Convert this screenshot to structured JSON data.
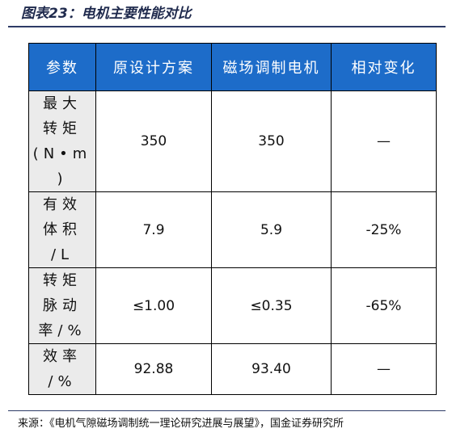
{
  "title": "图表23：电机主要性能对比",
  "table": {
    "headers": [
      "参数",
      "原设计方案",
      "磁场调制电机",
      "相对变化"
    ],
    "rows": [
      {
        "label_lines": [
          "最大",
          "转矩",
          "(N•m",
          ")"
        ],
        "original": "350",
        "modulated": "350",
        "change": "—"
      },
      {
        "label_lines": [
          "有效",
          "体积",
          "/L"
        ],
        "original": "7.9",
        "modulated": "5.9",
        "change": "-25%"
      },
      {
        "label_lines": [
          "转矩",
          "脉动",
          "率/%"
        ],
        "original": "≤1.00",
        "modulated": "≤0.35",
        "change": "-65%"
      },
      {
        "label_lines": [
          "效率",
          "/%"
        ],
        "original": "92.88",
        "modulated": "93.40",
        "change": "—"
      }
    ]
  },
  "source": "来源：《电机气隙磁场调制统一理论研究进展与展望》，国金证券研究所"
}
